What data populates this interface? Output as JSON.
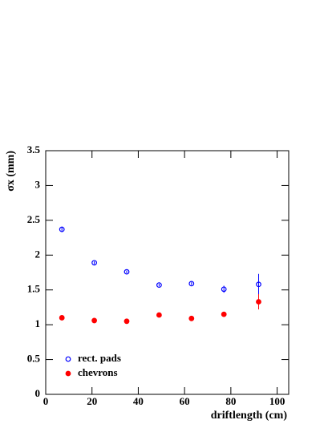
{
  "chart_data": {
    "type": "scatter",
    "xlabel": "driftlength (cm)",
    "ylabel": "σx (mm)",
    "xlim": [
      0,
      105
    ],
    "ylim": [
      0,
      3.5
    ],
    "xticks": [
      0,
      20,
      40,
      60,
      80,
      100
    ],
    "yticks": [
      0,
      0.5,
      1,
      1.5,
      2,
      2.5,
      3,
      3.5
    ],
    "legend": "lower-left",
    "series": [
      {
        "name": "rect. pads",
        "color": "#0000ff",
        "marker": "open",
        "x": [
          7,
          21,
          35,
          49,
          63,
          77,
          92
        ],
        "values": [
          2.37,
          1.89,
          1.76,
          1.57,
          1.59,
          1.51,
          1.58
        ],
        "errors": [
          0.04,
          0.02,
          0.02,
          0.02,
          0.02,
          0.05,
          0.15
        ]
      },
      {
        "name": "chevrons",
        "color": "#ff0000",
        "marker": "filled",
        "x": [
          7,
          21,
          35,
          49,
          63,
          77,
          92
        ],
        "values": [
          1.1,
          1.06,
          1.05,
          1.14,
          1.09,
          1.15,
          1.33
        ],
        "errors": [
          0.02,
          0.02,
          0.02,
          0.02,
          0.02,
          0.03,
          0.11
        ]
      }
    ]
  }
}
